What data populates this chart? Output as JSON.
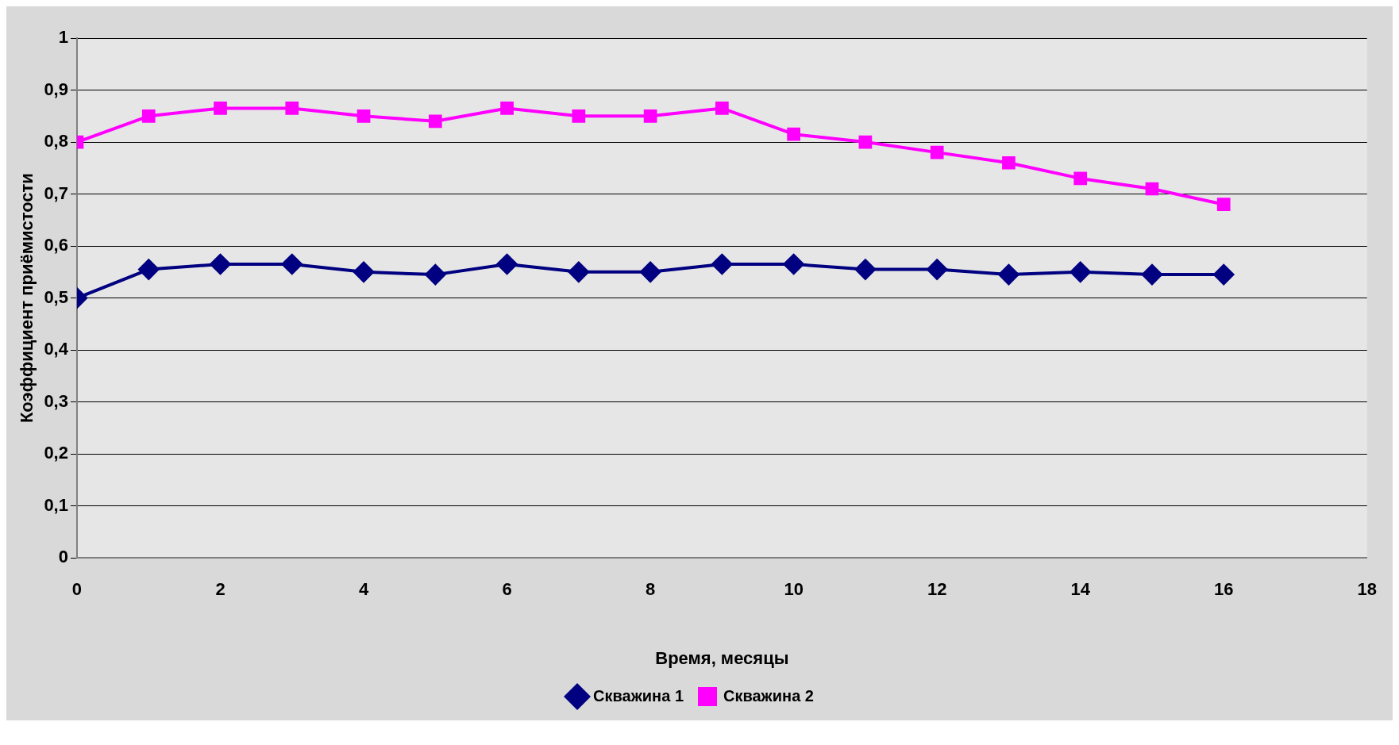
{
  "chart_data": {
    "type": "line",
    "xlabel": "Время, месяцы",
    "ylabel": "Коэффициент приёмистости",
    "x": [
      0,
      1,
      2,
      3,
      4,
      5,
      6,
      7,
      8,
      9,
      10,
      11,
      12,
      13,
      14,
      15,
      16
    ],
    "xlim": [
      0,
      18
    ],
    "xticks": [
      0,
      2,
      4,
      6,
      8,
      10,
      12,
      14,
      16,
      18
    ],
    "ylim": [
      0,
      1
    ],
    "yticks": [
      {
        "value": 0,
        "label": "0"
      },
      {
        "value": 0.1,
        "label": "0,1"
      },
      {
        "value": 0.2,
        "label": "0,2"
      },
      {
        "value": 0.3,
        "label": "0,3"
      },
      {
        "value": 0.4,
        "label": "0,4"
      },
      {
        "value": 0.5,
        "label": "0,5"
      },
      {
        "value": 0.6,
        "label": "0,6"
      },
      {
        "value": 0.7,
        "label": "0,7"
      },
      {
        "value": 0.8,
        "label": "0,8"
      },
      {
        "value": 0.9,
        "label": "0,9"
      },
      {
        "value": 1,
        "label": "1"
      }
    ],
    "grid": "y",
    "legend": "bottom",
    "line_style": "solid",
    "series": [
      {
        "name": "Скважина 1",
        "color": "#000080",
        "marker": "diamond",
        "values": [
          0.5,
          0.555,
          0.565,
          0.565,
          0.55,
          0.545,
          0.565,
          0.55,
          0.55,
          0.565,
          0.565,
          0.555,
          0.555,
          0.545,
          0.55,
          0.545,
          0.545
        ]
      },
      {
        "name": "Скважина 2",
        "color": "#ff00ff",
        "marker": "square",
        "values": [
          0.8,
          0.85,
          0.865,
          0.865,
          0.85,
          0.84,
          0.865,
          0.85,
          0.85,
          0.865,
          0.815,
          0.8,
          0.78,
          0.76,
          0.73,
          0.71,
          0.68
        ]
      }
    ]
  }
}
